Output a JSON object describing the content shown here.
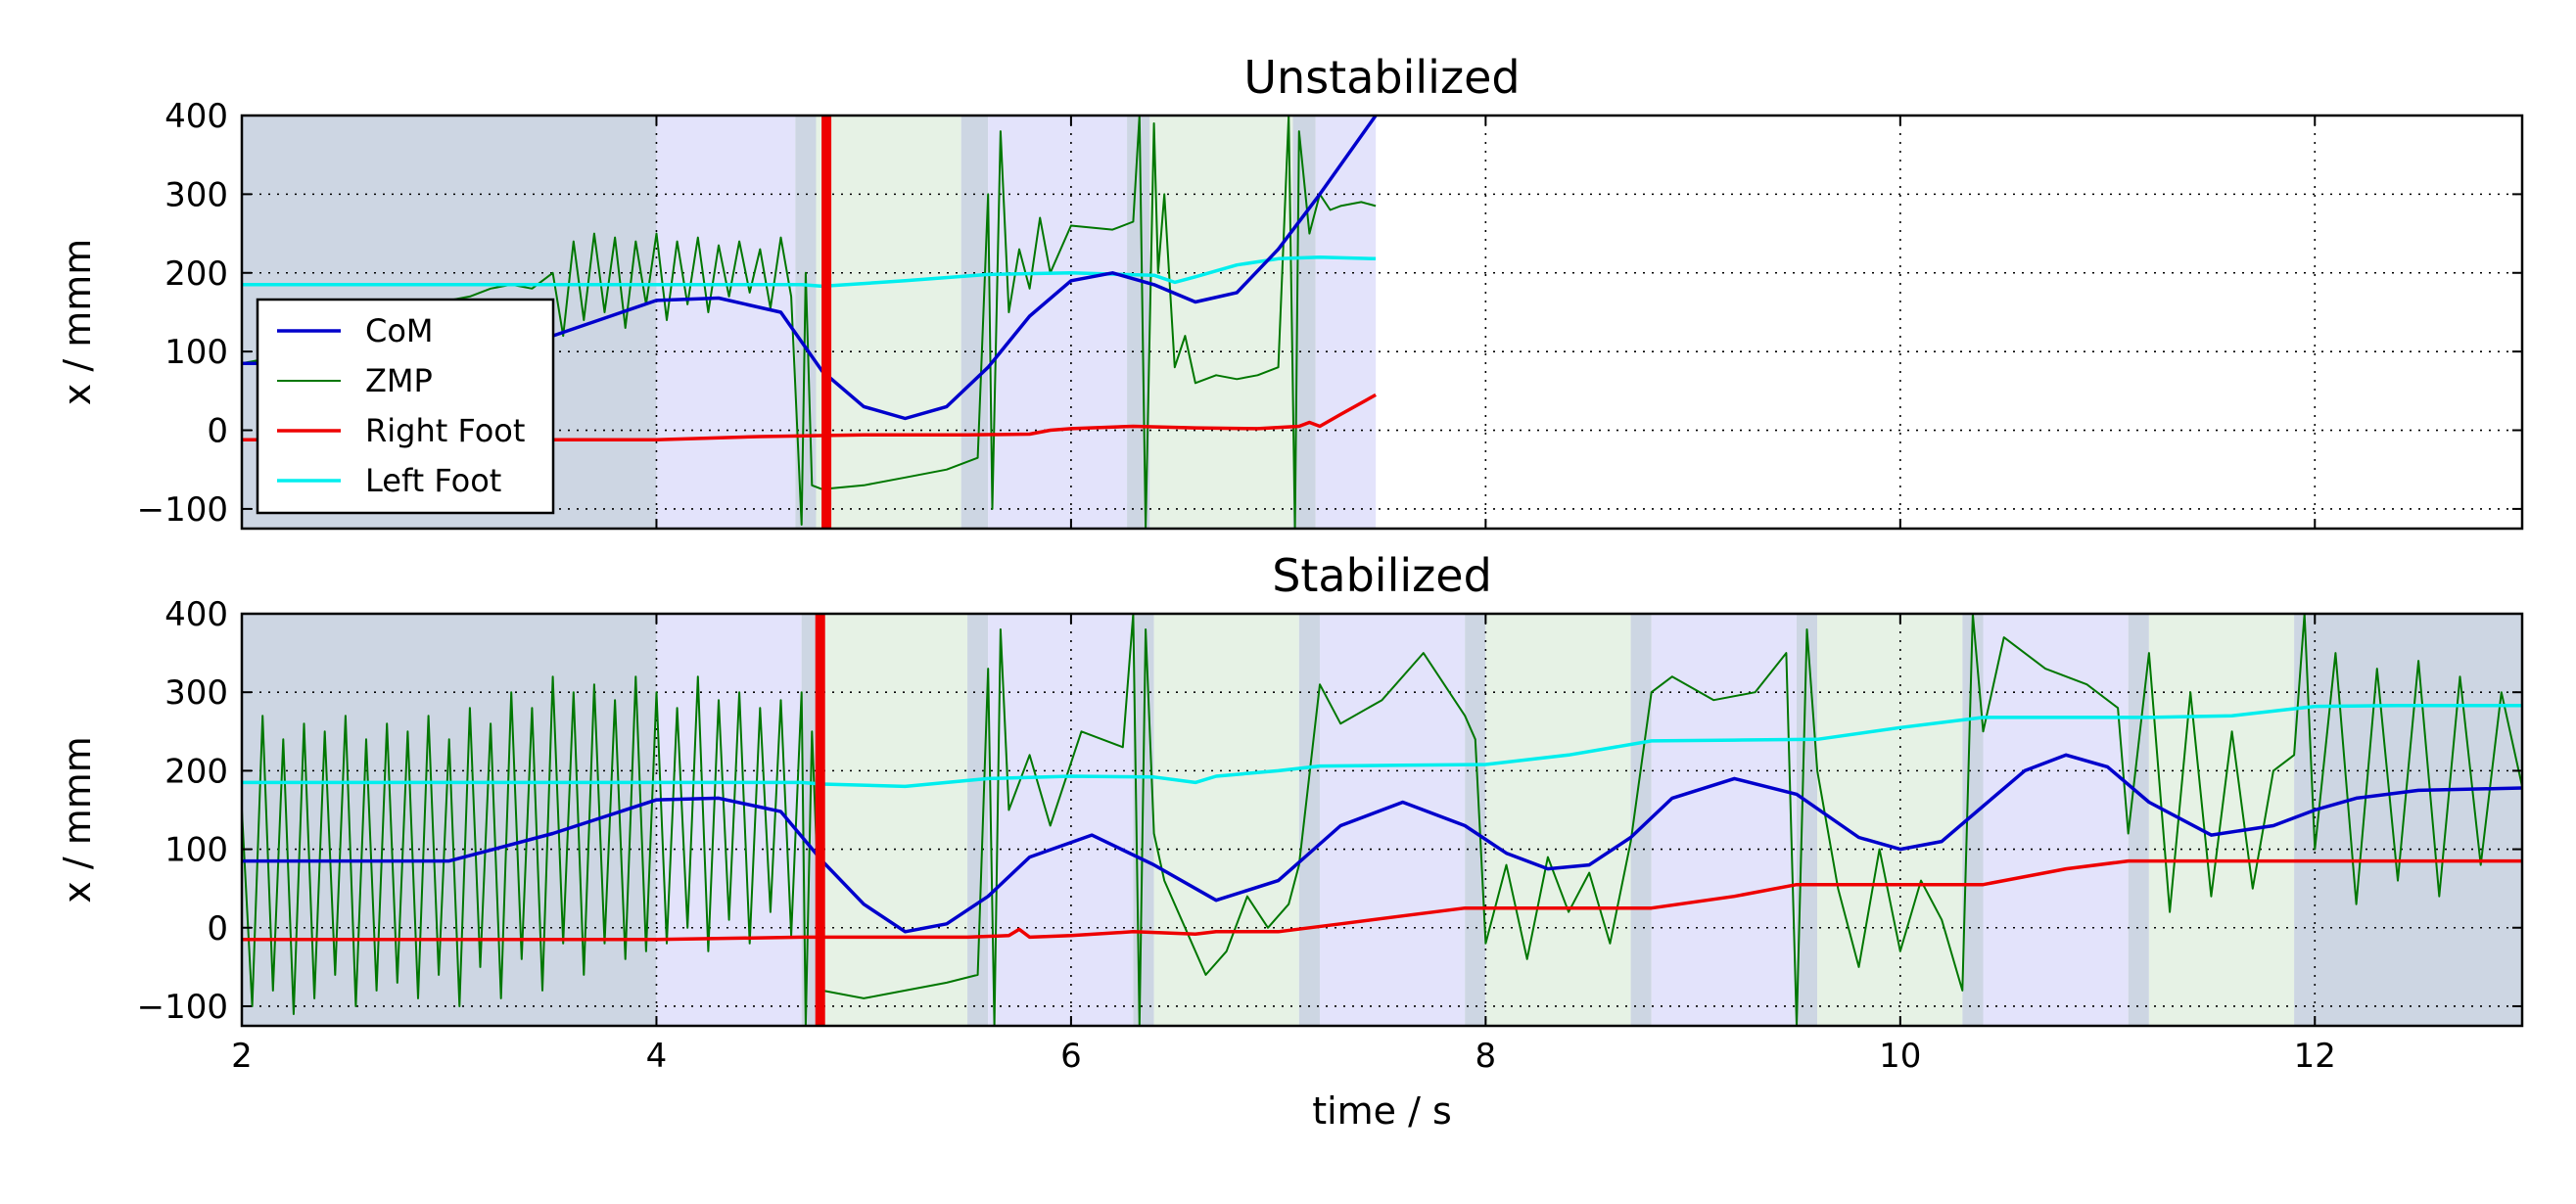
{
  "chart_data": [
    {
      "type": "line",
      "title": "Unstabilized",
      "xlabel": "",
      "ylabel": "x / mmm",
      "xlim": [
        2,
        13
      ],
      "ylim": [
        -125,
        400
      ],
      "x_ticks": [
        2,
        4,
        6,
        8,
        10,
        12
      ],
      "x_tick_labels": [],
      "y_ticks": [
        -100,
        0,
        100,
        200,
        300,
        400
      ],
      "y_tick_labels": [
        "−100",
        "0",
        "100",
        "200",
        "300",
        "400"
      ],
      "grid": true,
      "legend": {
        "placement": "left",
        "entries": [
          {
            "label": "CoM",
            "color": "#0000cc"
          },
          {
            "label": "ZMP",
            "color": "#007700"
          },
          {
            "label": "Right Foot",
            "color": "#ee0000"
          },
          {
            "label": "Left Foot",
            "color": "#00eeee"
          }
        ]
      },
      "phases": [
        {
          "start": 2.0,
          "end": 4.0,
          "color": "#cdd6e3"
        },
        {
          "start": 4.0,
          "end": 4.67,
          "color": "#e3e3fb"
        },
        {
          "start": 4.67,
          "end": 4.77,
          "color": "#cdd6e3"
        },
        {
          "start": 4.77,
          "end": 5.47,
          "color": "#e6f2e5"
        },
        {
          "start": 5.47,
          "end": 5.6,
          "color": "#cdd6e3"
        },
        {
          "start": 5.6,
          "end": 6.27,
          "color": "#e3e3fb"
        },
        {
          "start": 6.27,
          "end": 6.38,
          "color": "#cdd6e3"
        },
        {
          "start": 6.38,
          "end": 7.07,
          "color": "#e6f2e5"
        },
        {
          "start": 7.07,
          "end": 7.18,
          "color": "#cdd6e3"
        },
        {
          "start": 7.18,
          "end": 7.47,
          "color": "#e3e3fb"
        }
      ],
      "markers": [
        {
          "x": 4.82,
          "color": "#ee0000"
        }
      ],
      "series": [
        {
          "name": "CoM",
          "color": "#0000cc",
          "x": [
            2.0,
            3.0,
            3.5,
            4.0,
            4.3,
            4.6,
            4.8,
            5.0,
            5.2,
            5.4,
            5.6,
            5.8,
            6.0,
            6.2,
            6.4,
            6.6,
            6.8,
            7.0,
            7.2,
            7.47
          ],
          "y": [
            85,
            85,
            120,
            165,
            168,
            150,
            75,
            30,
            15,
            30,
            80,
            145,
            190,
            200,
            185,
            163,
            175,
            230,
            300,
            400
          ]
        },
        {
          "name": "ZMP",
          "color": "#007700",
          "x": [
            2.0,
            2.1,
            2.2,
            2.3,
            2.4,
            2.5,
            2.6,
            2.7,
            2.8,
            2.9,
            3.0,
            3.1,
            3.2,
            3.3,
            3.4,
            3.5,
            3.55,
            3.6,
            3.65,
            3.7,
            3.75,
            3.8,
            3.85,
            3.9,
            3.95,
            4.0,
            4.05,
            4.1,
            4.15,
            4.2,
            4.25,
            4.3,
            4.35,
            4.4,
            4.45,
            4.5,
            4.55,
            4.6,
            4.65,
            4.7,
            4.72,
            4.75,
            4.8,
            5.0,
            5.2,
            5.4,
            5.55,
            5.6,
            5.62,
            5.66,
            5.7,
            5.75,
            5.8,
            5.85,
            5.9,
            6.0,
            6.2,
            6.3,
            6.33,
            6.36,
            6.4,
            6.42,
            6.45,
            6.5,
            6.55,
            6.6,
            6.7,
            6.8,
            6.9,
            7.0,
            7.05,
            7.08,
            7.1,
            7.15,
            7.2,
            7.25,
            7.3,
            7.4,
            7.47
          ],
          "y": [
            85,
            90,
            95,
            100,
            110,
            120,
            130,
            140,
            150,
            160,
            165,
            170,
            180,
            185,
            180,
            200,
            120,
            240,
            140,
            250,
            150,
            245,
            130,
            240,
            160,
            250,
            140,
            240,
            160,
            245,
            150,
            235,
            170,
            240,
            175,
            230,
            155,
            245,
            170,
            -120,
            200,
            -70,
            -75,
            -70,
            -60,
            -50,
            -35,
            300,
            -100,
            380,
            150,
            230,
            180,
            270,
            200,
            260,
            255,
            265,
            400,
            -125,
            390,
            200,
            300,
            80,
            120,
            60,
            70,
            65,
            70,
            80,
            400,
            -125,
            380,
            250,
            300,
            280,
            285,
            290,
            285
          ]
        },
        {
          "name": "Right Foot",
          "color": "#ee0000",
          "x": [
            2.0,
            3.0,
            4.0,
            4.5,
            5.0,
            5.5,
            5.8,
            5.9,
            6.0,
            6.3,
            6.6,
            6.9,
            7.1,
            7.15,
            7.2,
            7.3,
            7.47
          ],
          "y": [
            -12,
            -12,
            -12,
            -8,
            -6,
            -6,
            -5,
            0,
            2,
            5,
            3,
            2,
            5,
            10,
            5,
            20,
            45
          ]
        },
        {
          "name": "Left Foot",
          "color": "#00eeee",
          "x": [
            2.0,
            4.7,
            4.8,
            5.2,
            5.6,
            6.0,
            6.4,
            6.5,
            6.6,
            6.8,
            7.0,
            7.2,
            7.47
          ],
          "y": [
            185,
            185,
            183,
            190,
            198,
            200,
            197,
            188,
            195,
            210,
            218,
            220,
            218
          ]
        }
      ]
    },
    {
      "type": "line",
      "title": "Stabilized",
      "xlabel": "time / s",
      "ylabel": "x / mmm",
      "xlim": [
        2,
        13
      ],
      "ylim": [
        -125,
        400
      ],
      "x_ticks": [
        2,
        4,
        6,
        8,
        10,
        12
      ],
      "x_tick_labels": [
        "2",
        "4",
        "6",
        "8",
        "10",
        "12"
      ],
      "y_ticks": [
        -100,
        0,
        100,
        200,
        300,
        400
      ],
      "y_tick_labels": [
        "−100",
        "0",
        "100",
        "200",
        "300",
        "400"
      ],
      "grid": true,
      "phases": [
        {
          "start": 2.0,
          "end": 4.0,
          "color": "#cdd6e3"
        },
        {
          "start": 4.0,
          "end": 4.7,
          "color": "#e3e3fb"
        },
        {
          "start": 4.7,
          "end": 4.8,
          "color": "#cdd6e3"
        },
        {
          "start": 4.8,
          "end": 5.5,
          "color": "#e6f2e5"
        },
        {
          "start": 5.5,
          "end": 5.6,
          "color": "#cdd6e3"
        },
        {
          "start": 5.6,
          "end": 6.3,
          "color": "#e3e3fb"
        },
        {
          "start": 6.3,
          "end": 6.4,
          "color": "#cdd6e3"
        },
        {
          "start": 6.4,
          "end": 7.1,
          "color": "#e6f2e5"
        },
        {
          "start": 7.1,
          "end": 7.2,
          "color": "#cdd6e3"
        },
        {
          "start": 7.2,
          "end": 7.9,
          "color": "#e3e3fb"
        },
        {
          "start": 7.9,
          "end": 8.0,
          "color": "#cdd6e3"
        },
        {
          "start": 8.0,
          "end": 8.7,
          "color": "#e6f2e5"
        },
        {
          "start": 8.7,
          "end": 8.8,
          "color": "#cdd6e3"
        },
        {
          "start": 8.8,
          "end": 9.5,
          "color": "#e3e3fb"
        },
        {
          "start": 9.5,
          "end": 9.6,
          "color": "#cdd6e3"
        },
        {
          "start": 9.6,
          "end": 10.3,
          "color": "#e6f2e5"
        },
        {
          "start": 10.3,
          "end": 10.4,
          "color": "#cdd6e3"
        },
        {
          "start": 10.4,
          "end": 11.1,
          "color": "#e3e3fb"
        },
        {
          "start": 11.1,
          "end": 11.2,
          "color": "#cdd6e3"
        },
        {
          "start": 11.2,
          "end": 11.9,
          "color": "#e6f2e5"
        },
        {
          "start": 11.9,
          "end": 13.0,
          "color": "#cdd6e3"
        }
      ],
      "markers": [
        {
          "x": 4.79,
          "color": "#ee0000"
        }
      ],
      "series": [
        {
          "name": "CoM",
          "color": "#0000cc",
          "x": [
            2.0,
            3.0,
            3.5,
            4.0,
            4.3,
            4.6,
            4.8,
            5.0,
            5.2,
            5.4,
            5.6,
            5.8,
            6.1,
            6.4,
            6.7,
            7.0,
            7.3,
            7.6,
            7.9,
            8.1,
            8.3,
            8.5,
            8.7,
            8.9,
            9.2,
            9.5,
            9.8,
            10.0,
            10.2,
            10.4,
            10.6,
            10.8,
            11.0,
            11.2,
            11.5,
            11.8,
            12.0,
            12.2,
            12.5,
            13.0
          ],
          "y": [
            85,
            85,
            120,
            163,
            165,
            148,
            85,
            30,
            -5,
            5,
            40,
            90,
            118,
            80,
            35,
            60,
            130,
            160,
            130,
            95,
            75,
            80,
            115,
            165,
            190,
            170,
            115,
            100,
            110,
            155,
            200,
            220,
            205,
            160,
            118,
            130,
            150,
            165,
            175,
            178
          ]
        },
        {
          "name": "ZMP",
          "color": "#007700",
          "x": [
            2.0,
            2.05,
            2.1,
            2.15,
            2.2,
            2.25,
            2.3,
            2.35,
            2.4,
            2.45,
            2.5,
            2.55,
            2.6,
            2.65,
            2.7,
            2.75,
            2.8,
            2.85,
            2.9,
            2.95,
            3.0,
            3.05,
            3.1,
            3.15,
            3.2,
            3.25,
            3.3,
            3.35,
            3.4,
            3.45,
            3.5,
            3.55,
            3.6,
            3.65,
            3.7,
            3.75,
            3.8,
            3.85,
            3.9,
            3.95,
            4.0,
            4.05,
            4.1,
            4.15,
            4.2,
            4.25,
            4.3,
            4.35,
            4.4,
            4.45,
            4.5,
            4.55,
            4.6,
            4.65,
            4.7,
            4.72,
            4.75,
            4.8,
            5.0,
            5.2,
            5.4,
            5.55,
            5.6,
            5.63,
            5.66,
            5.7,
            5.8,
            5.9,
            6.05,
            6.15,
            6.25,
            6.3,
            6.33,
            6.36,
            6.4,
            6.45,
            6.55,
            6.65,
            6.75,
            6.85,
            6.95,
            7.05,
            7.1,
            7.2,
            7.3,
            7.5,
            7.7,
            7.9,
            7.95,
            8.0,
            8.1,
            8.2,
            8.3,
            8.4,
            8.5,
            8.6,
            8.7,
            8.8,
            8.9,
            9.1,
            9.3,
            9.45,
            9.5,
            9.55,
            9.6,
            9.7,
            9.8,
            9.9,
            10.0,
            10.1,
            10.2,
            10.3,
            10.35,
            10.4,
            10.5,
            10.7,
            10.9,
            11.05,
            11.1,
            11.2,
            11.3,
            11.4,
            11.5,
            11.6,
            11.7,
            11.8,
            11.9,
            11.95,
            12.0,
            12.1,
            12.2,
            12.3,
            12.4,
            12.5,
            12.6,
            12.7,
            12.8,
            12.9,
            13.0
          ],
          "y": [
            150,
            -100,
            270,
            -80,
            240,
            -110,
            260,
            -90,
            250,
            -60,
            270,
            -100,
            240,
            -80,
            260,
            -70,
            250,
            -90,
            270,
            -60,
            240,
            -100,
            280,
            -50,
            260,
            -90,
            300,
            -40,
            280,
            -80,
            320,
            -20,
            300,
            -60,
            310,
            -20,
            290,
            -40,
            320,
            -30,
            300,
            -20,
            280,
            0,
            320,
            -30,
            290,
            10,
            300,
            -20,
            280,
            20,
            290,
            -10,
            300,
            -125,
            250,
            -80,
            -90,
            -80,
            -70,
            -60,
            330,
            -125,
            380,
            150,
            220,
            130,
            250,
            240,
            230,
            400,
            -125,
            380,
            120,
            60,
            0,
            -60,
            -30,
            40,
            0,
            30,
            80,
            310,
            260,
            290,
            350,
            270,
            240,
            -20,
            80,
            -40,
            90,
            20,
            70,
            -20,
            110,
            300,
            320,
            290,
            300,
            350,
            -125,
            380,
            200,
            50,
            -50,
            100,
            -30,
            60,
            10,
            -80,
            400,
            250,
            370,
            330,
            310,
            280,
            120,
            350,
            20,
            300,
            40,
            250,
            50,
            200,
            220,
            400,
            100,
            350,
            30,
            330,
            60,
            340,
            40,
            320,
            80,
            300,
            180
          ]
        },
        {
          "name": "Right Foot",
          "color": "#ee0000",
          "x": [
            2.0,
            3.0,
            4.0,
            4.7,
            5.0,
            5.5,
            5.7,
            5.75,
            5.8,
            6.0,
            6.3,
            6.6,
            6.7,
            7.0,
            7.3,
            7.6,
            7.9,
            8.1,
            8.5,
            8.8,
            9.2,
            9.5,
            10.0,
            10.4,
            10.8,
            11.1,
            11.5,
            12.0,
            13.0
          ],
          "y": [
            -15,
            -15,
            -15,
            -12,
            -12,
            -12,
            -10,
            -2,
            -12,
            -10,
            -5,
            -8,
            -5,
            -5,
            5,
            15,
            25,
            25,
            25,
            25,
            40,
            55,
            55,
            55,
            75,
            85,
            85,
            85,
            85
          ]
        },
        {
          "name": "Left Foot",
          "color": "#00eeee",
          "x": [
            2.0,
            4.7,
            4.8,
            5.2,
            5.6,
            6.0,
            6.4,
            6.6,
            6.7,
            7.0,
            7.2,
            7.6,
            8.0,
            8.4,
            8.8,
            9.2,
            9.6,
            10.0,
            10.4,
            10.8,
            11.2,
            11.6,
            12.0,
            12.4,
            13.0
          ],
          "y": [
            185,
            185,
            183,
            180,
            190,
            193,
            192,
            185,
            193,
            200,
            206,
            207,
            208,
            220,
            238,
            239,
            240,
            255,
            268,
            268,
            268,
            270,
            282,
            283,
            283
          ]
        }
      ]
    }
  ]
}
